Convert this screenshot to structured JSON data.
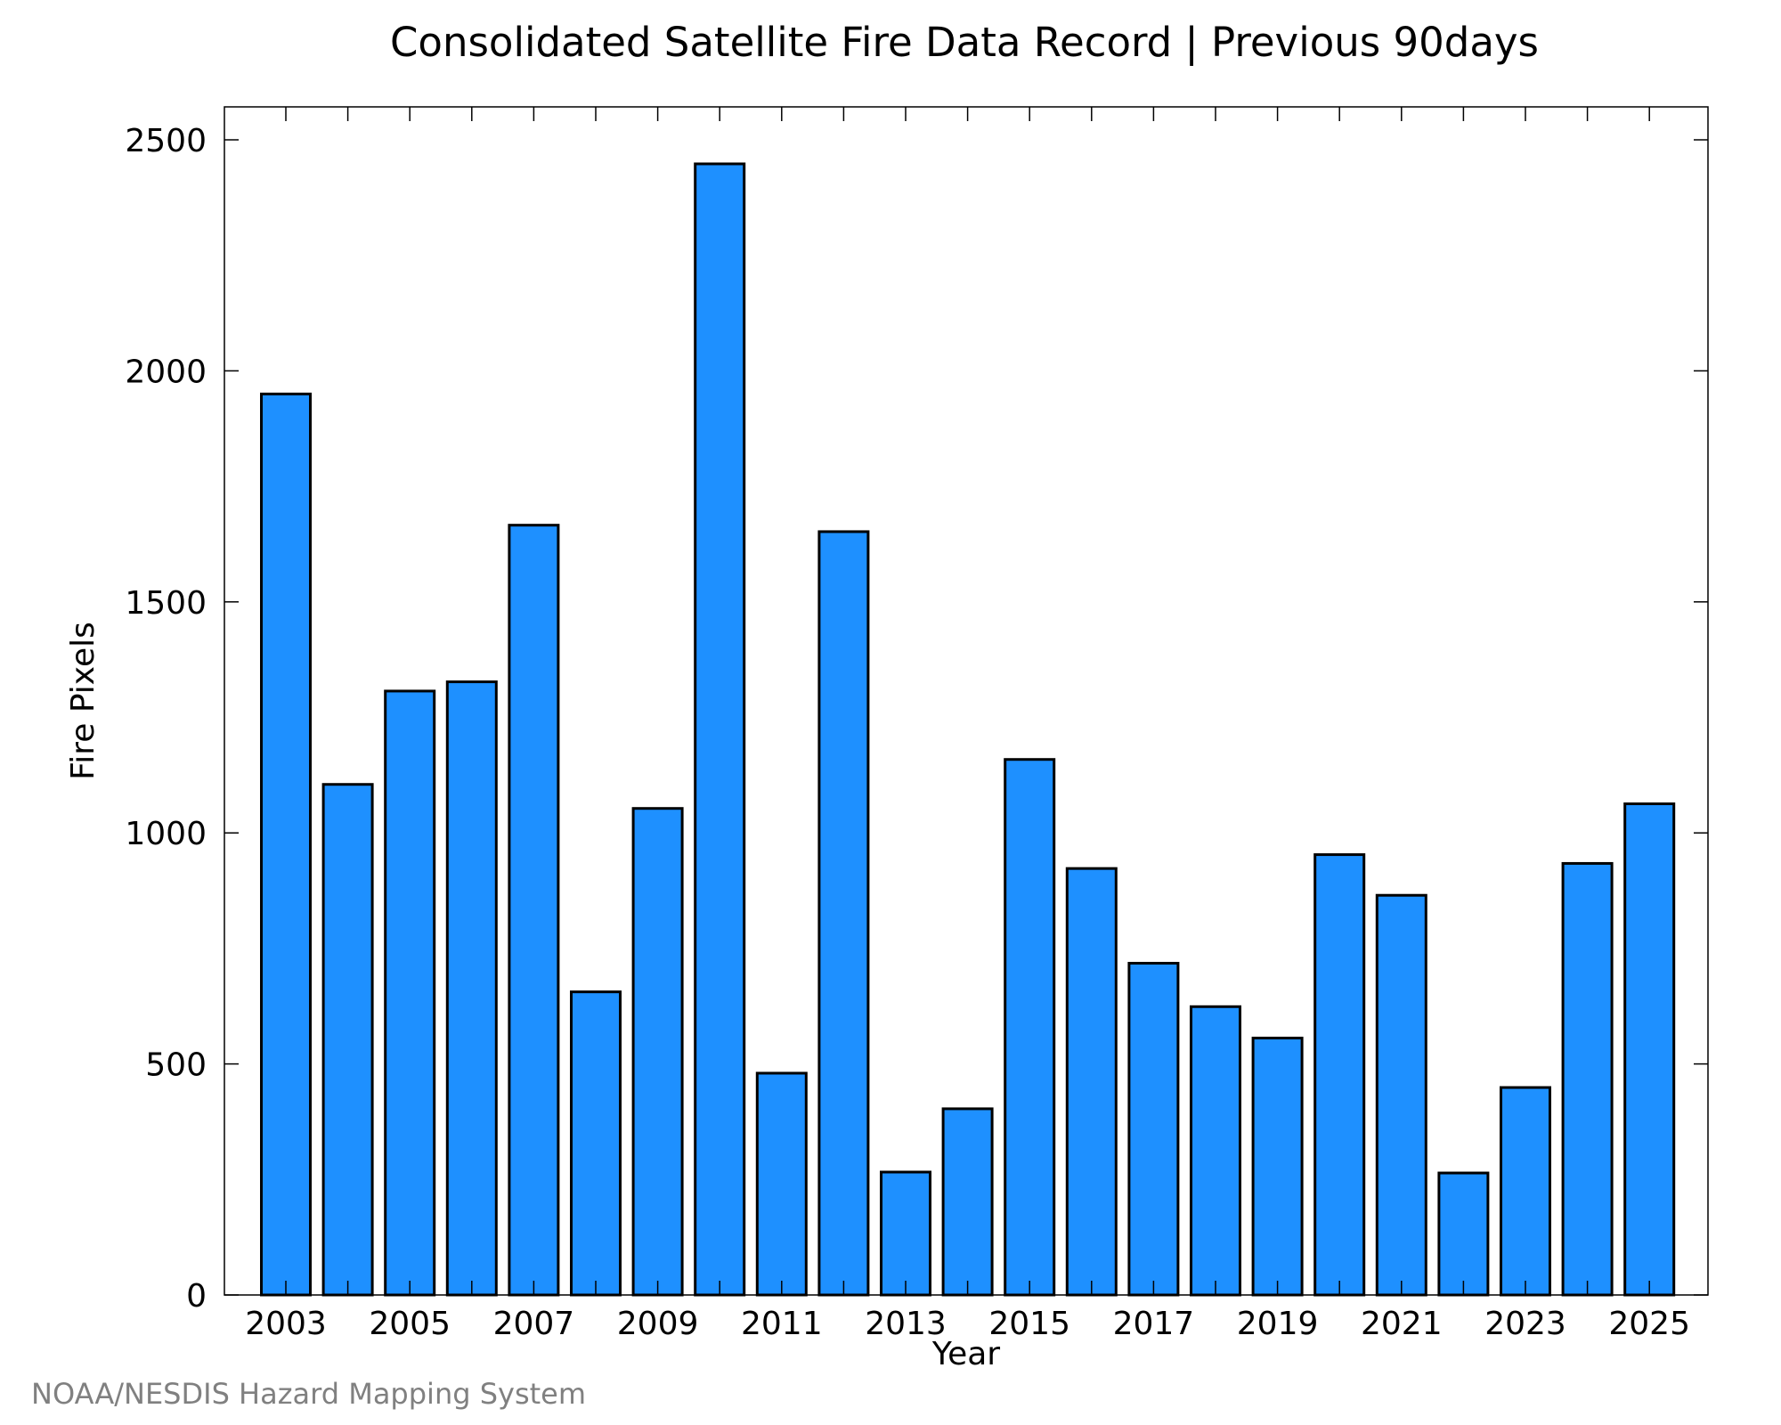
{
  "chart_data": {
    "type": "bar",
    "title": "Consolidated Satellite Fire Data Record | Previous 90days",
    "xlabel": "Year",
    "ylabel": "Fire Pixels",
    "ylim": [
      0,
      2500
    ],
    "y_ticks": [
      0,
      500,
      1000,
      1500,
      2000,
      2500
    ],
    "x_tick_labels": [
      "2003",
      "2005",
      "2007",
      "2009",
      "2011",
      "2013",
      "2015",
      "2017",
      "2019",
      "2021",
      "2023",
      "2025"
    ],
    "categories": [
      "2003",
      "2004",
      "2005",
      "2006",
      "2007",
      "2008",
      "2009",
      "2010",
      "2011",
      "2012",
      "2013",
      "2014",
      "2015",
      "2016",
      "2017",
      "2018",
      "2019",
      "2020",
      "2021",
      "2022",
      "2023",
      "2024",
      "2025"
    ],
    "values": [
      1950,
      1105,
      1307,
      1327,
      1666,
      656,
      1053,
      2448,
      480,
      1652,
      266,
      403,
      1159,
      923,
      718,
      624,
      556,
      953,
      865,
      264,
      449,
      934,
      1063
    ],
    "bar_color": "#1E90FF",
    "grid": false,
    "credit": "NOAA/NESDIS Hazard Mapping System"
  }
}
